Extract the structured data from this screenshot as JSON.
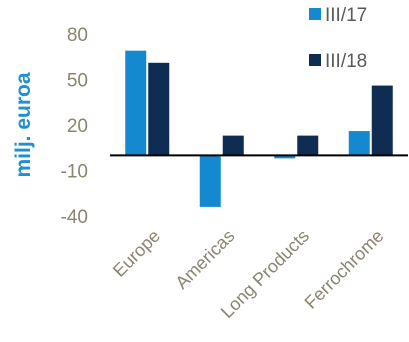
{
  "chart_data": {
    "type": "bar",
    "title": "",
    "xlabel": "",
    "ylabel": "milj. euroa",
    "ylim": [
      -40,
      80
    ],
    "yticks": [
      80,
      50,
      20,
      -10,
      -40
    ],
    "grid": false,
    "legend_position": "top-right",
    "categories": [
      "Europe",
      "Americas",
      "Long Products",
      "Ferrochrome"
    ],
    "series": [
      {
        "name": "III/17",
        "color": "#1589cf",
        "values": [
          69,
          -34,
          -2,
          16
        ]
      },
      {
        "name": "III/18",
        "color": "#0f2d52",
        "values": [
          61,
          13,
          13,
          46
        ]
      }
    ]
  }
}
